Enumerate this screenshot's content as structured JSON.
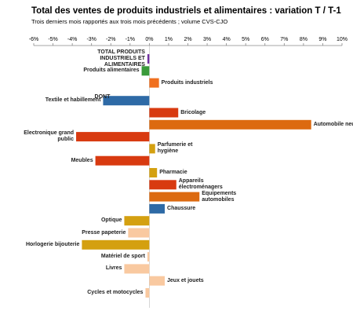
{
  "chart_data": {
    "type": "bar",
    "orientation": "horizontal",
    "title": "Total des ventes de produits industriels et alimentaires : variation T / T-1",
    "subtitle": "Trois derniers mois rapportés aux trois mois précédents ; volume CVS-CJO",
    "categories": [
      "TOTAL PRODUITS INDUSTRIELS ET ALIMENTAIRES",
      "Produits alimentaires",
      "Produits industriels",
      "DONT",
      "Textile et habillement",
      "Bricolage",
      "Automobile neuve",
      "Electronique grand public",
      "Parfumerie et hygiène",
      "Meubles",
      "Pharmacie",
      "Appareils électroménagers",
      "Equipements automobiles",
      "Chaussure",
      "Optique",
      "Presse papeterie",
      "Horlogerie bijouterie",
      "Matériel de sport",
      "Livres",
      "Jeux et jouets",
      "Cycles et motocycles"
    ],
    "values": [
      -0.1,
      -0.4,
      0.5,
      null,
      -2.4,
      1.5,
      8.4,
      -3.8,
      0.3,
      -2.8,
      0.4,
      1.4,
      2.6,
      0.8,
      -1.3,
      -1.1,
      -3.5,
      -0.1,
      -1.3,
      0.8,
      -0.2
    ],
    "colors": [
      "#7030a0",
      "#3a9a3a",
      "#f07020",
      null,
      "#2e6aa6",
      "#d83a10",
      "#dc6a10",
      "#d83a10",
      "#d4a010",
      "#d83a10",
      "#d4a010",
      "#d83a10",
      "#dc6a10",
      "#2e6aa6",
      "#d4a010",
      "#f9c9a0",
      "#d4a010",
      "#f9c9a0",
      "#f9c9a0",
      "#f9c9a0",
      "#f9c9a0"
    ],
    "xlim": [
      -6,
      10
    ],
    "xticks": [
      {
        "value": -6,
        "label": "-6%"
      },
      {
        "value": -5,
        "label": "-5%"
      },
      {
        "value": -4,
        "label": "-4%"
      },
      {
        "value": -3,
        "label": "-3%"
      },
      {
        "value": -2,
        "label": "-2%"
      },
      {
        "value": -1,
        "label": "-1%"
      },
      {
        "value": 0,
        "label": "0%"
      },
      {
        "value": 1,
        "label": "1%"
      },
      {
        "value": 2,
        "label": "2%"
      },
      {
        "value": 3,
        "label": "3%"
      },
      {
        "value": 4,
        "label": "4%"
      },
      {
        "value": 5,
        "label": "5%"
      },
      {
        "value": 6,
        "label": "6%"
      },
      {
        "value": 7,
        "label": "7%"
      },
      {
        "value": 8,
        "label": "8%"
      },
      {
        "value": 9,
        "label": "9%"
      },
      {
        "value": 10,
        "label": "10%"
      }
    ]
  }
}
